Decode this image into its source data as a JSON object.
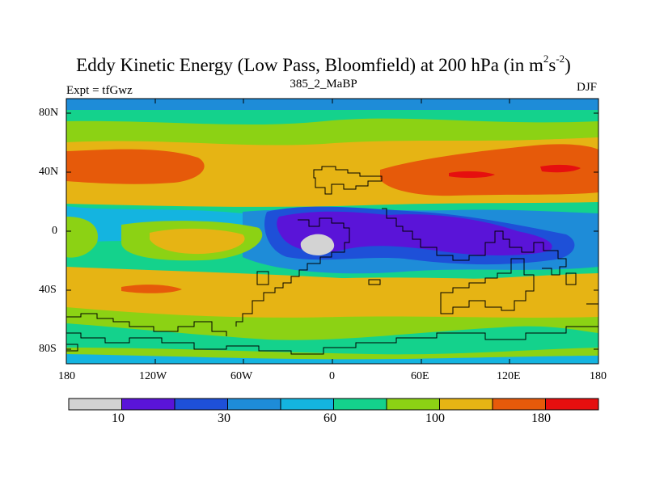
{
  "title": {
    "main": "Eddy Kinetic Energy (Low Pass, Bloomfield) at 200 hPa (in m",
    "sup1": "2",
    "mid": "s",
    "sup2": "-2",
    "end": ")"
  },
  "left_label": "Expt = tfGwz",
  "center_label": "385_2_MaBP",
  "right_label": "DJF",
  "y_ticks": [
    "80N",
    "40N",
    "0",
    "40S",
    "80S"
  ],
  "x_ticks": [
    "180",
    "120W",
    "60W",
    "0",
    "60E",
    "120E",
    "180"
  ],
  "colorbar": {
    "colors": [
      "#d3d3d3",
      "#5a14d8",
      "#1e50d8",
      "#1e8cd8",
      "#14b4e0",
      "#14d28c",
      "#8cd214",
      "#e6b414",
      "#e65a0a",
      "#e60f0f"
    ],
    "labels": [
      "10",
      "30",
      "60",
      "100",
      "180"
    ]
  },
  "field_colors": {
    "c0": "#d3d3d3",
    "c1": "#5a14d8",
    "c2": "#1e50d8",
    "c3": "#1e8cd8",
    "c4": "#14b4e0",
    "c5": "#14d28c",
    "c6": "#8cd214",
    "c7": "#e6b414",
    "c8": "#e65a0a",
    "c9": "#e60f0f"
  }
}
